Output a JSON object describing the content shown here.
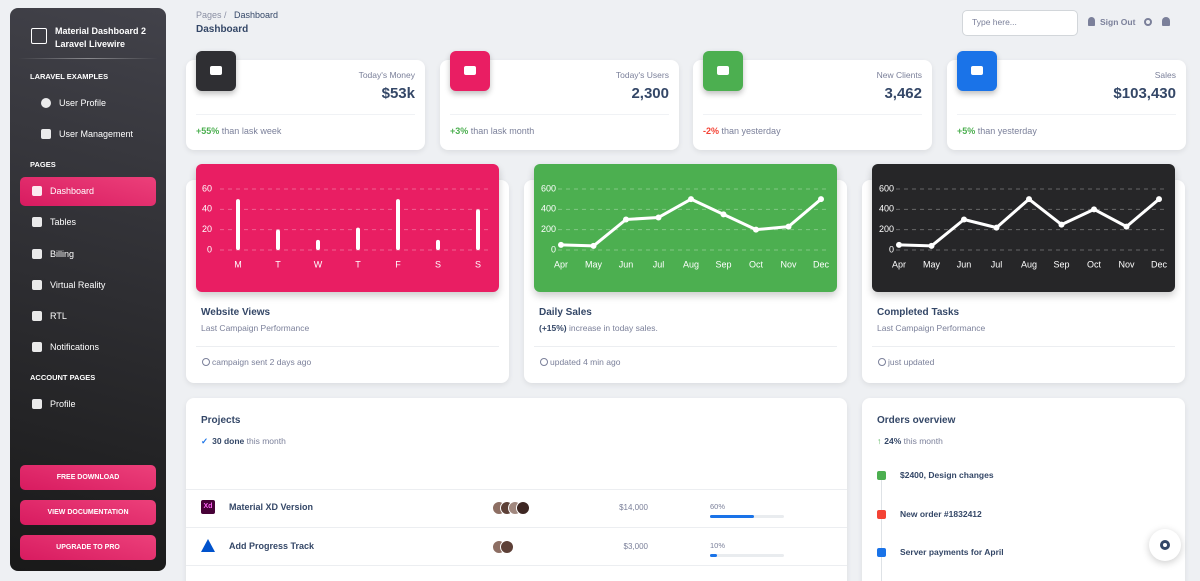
{
  "sidebar": {
    "brand": [
      "Material Dashboard 2",
      "Laravel Livewire"
    ],
    "sections": [
      {
        "heading": "LARAVEL EXAMPLES",
        "items": [
          "User Profile",
          "User Management"
        ]
      },
      {
        "heading": "PAGES",
        "items": [
          "Dashboard",
          "Tables",
          "Billing",
          "Virtual Reality",
          "RTL",
          "Notifications"
        ]
      },
      {
        "heading": "ACCOUNT PAGES",
        "items": [
          "Profile"
        ]
      }
    ],
    "buttons": [
      "FREE DOWNLOAD",
      "VIEW DOCUMENTATION",
      "UPGRADE TO PRO"
    ]
  },
  "navbar": {
    "breadcrumb": [
      "Pages",
      "Dashboard"
    ],
    "title": "Dashboard",
    "search_placeholder": "Type here...",
    "sign_out": "Sign Out"
  },
  "stats": [
    {
      "label": "Today's Money",
      "value": "$53k",
      "change": "+55%",
      "note": "than lask week",
      "icon_color": "#2f2f33",
      "change_color": "#4caf50"
    },
    {
      "label": "Today's Users",
      "value": "2,300",
      "change": "+3%",
      "note": "than lask month",
      "icon_color": "#e91e63",
      "change_color": "#4caf50"
    },
    {
      "label": "New Clients",
      "value": "3,462",
      "change": "-2%",
      "note": "than yesterday",
      "icon_color": "#4caf50",
      "change_color": "#f44335"
    },
    {
      "label": "Sales",
      "value": "$103,430",
      "change": "+5%",
      "note": "than yesterday",
      "icon_color": "#1a73e8",
      "change_color": "#4caf50"
    }
  ],
  "chart_data": [
    {
      "type": "bar",
      "title": "Website Views",
      "subtitle": "Last Campaign Performance",
      "footer": "campaign sent 2 days ago",
      "categories": [
        "M",
        "T",
        "W",
        "T",
        "F",
        "S",
        "S"
      ],
      "values": [
        50,
        20,
        10,
        22,
        50,
        10,
        40
      ],
      "ylim": [
        0,
        60
      ],
      "yticks": [
        0,
        20,
        40,
        60
      ],
      "grid": true,
      "color": "#ffffff",
      "background": "#e91e63"
    },
    {
      "type": "line",
      "title": "Daily Sales",
      "subtitle_highlight": "(+15%)",
      "subtitle": "increase in today sales.",
      "footer": "updated 4 min ago",
      "categories": [
        "Apr",
        "May",
        "Jun",
        "Jul",
        "Aug",
        "Sep",
        "Oct",
        "Nov",
        "Dec"
      ],
      "values": [
        50,
        40,
        300,
        320,
        500,
        350,
        200,
        230,
        500
      ],
      "ylim": [
        0,
        600
      ],
      "yticks": [
        0,
        200,
        400,
        600
      ],
      "grid": true,
      "color": "#ffffff",
      "background": "#4caf50"
    },
    {
      "type": "line",
      "title": "Completed Tasks",
      "subtitle": "Last Campaign Performance",
      "footer": "just updated",
      "categories": [
        "Apr",
        "May",
        "Jun",
        "Jul",
        "Aug",
        "Sep",
        "Oct",
        "Nov",
        "Dec"
      ],
      "values": [
        50,
        40,
        300,
        220,
        500,
        250,
        400,
        230,
        500
      ],
      "ylim": [
        0,
        600
      ],
      "yticks": [
        0,
        200,
        400,
        600
      ],
      "grid": true,
      "color": "#ffffff",
      "background": "#262628"
    }
  ],
  "projects": {
    "title": "Projects",
    "done": "30 done",
    "done_note": "this month",
    "rows": [
      {
        "name": "Material XD Version",
        "budget": "$14,000",
        "completion": 60,
        "completion_label": "60%",
        "icon": "Xd"
      },
      {
        "name": "Add Progress Track",
        "budget": "$3,000",
        "completion": 10,
        "completion_label": "10%"
      }
    ]
  },
  "orders": {
    "title": "Orders overview",
    "change": "24%",
    "note": "this month",
    "items": [
      "$2400, Design changes",
      "New order #1832412",
      "Server payments for April"
    ]
  }
}
